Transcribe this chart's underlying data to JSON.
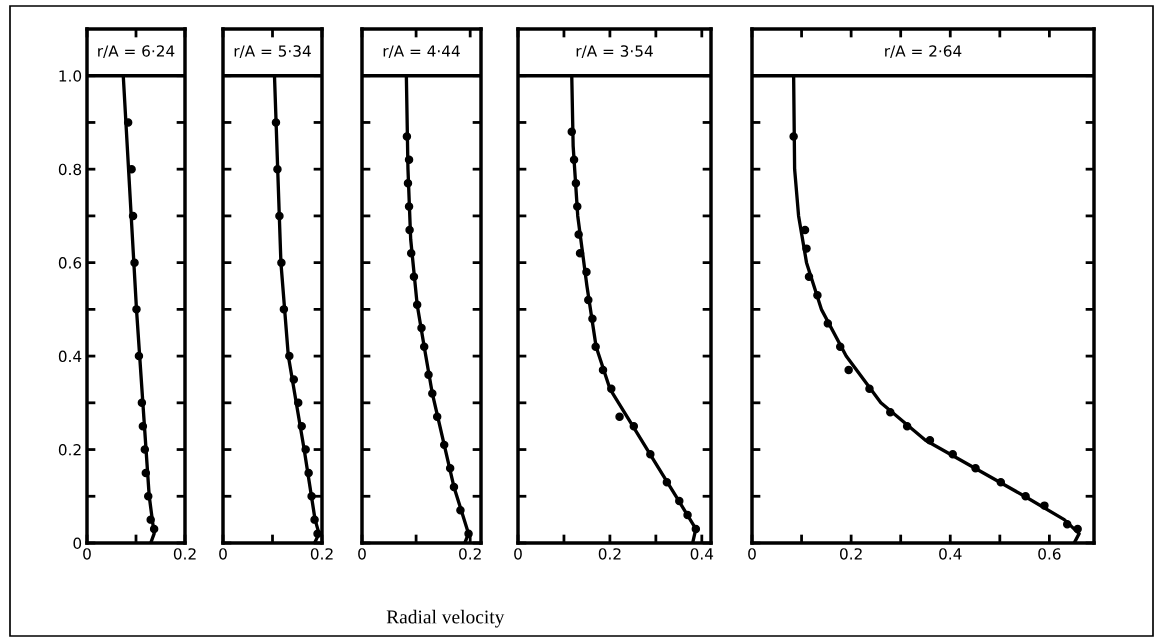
{
  "chart_data": [
    {
      "type": "scatter",
      "title": "r/A = 6·24",
      "xlim": [
        0,
        0.2
      ],
      "ylim": [
        0,
        1.1
      ],
      "xticks": [
        0,
        {
          "value": 0.1,
          "label": null
        },
        0.2
      ],
      "yticks": [
        0,
        {
          "value": 0.1,
          "label": null
        },
        0.2,
        {
          "value": 0.3,
          "label": null
        },
        0.4,
        {
          "value": 0.5,
          "label": null
        },
        0.6,
        {
          "value": 0.7,
          "label": null
        },
        0.8,
        {
          "value": 0.9,
          "label": null
        },
        {
          "value": 1.0,
          "label": "1.0"
        }
      ],
      "marker": "circle",
      "ref_lines": [
        {
          "axis": "y",
          "value": 1.0,
          "color": "#000000"
        }
      ],
      "series": [
        {
          "type": "line",
          "color": "#000000",
          "marker": "none",
          "x": [
            0.074,
            0.101,
            0.127,
            0.137,
            0.13
          ],
          "values": [
            1.0,
            0.5,
            0.1,
            0.02,
            0
          ]
        },
        {
          "color": "#000000",
          "x": [
            0.084,
            0.091,
            0.094,
            0.097,
            0.101,
            0.106,
            0.112,
            0.114,
            0.118,
            0.12,
            0.125,
            0.13,
            0.137
          ],
          "values": [
            0.9,
            0.8,
            0.7,
            0.6,
            0.5,
            0.4,
            0.3,
            0.25,
            0.2,
            0.15,
            0.1,
            0.05,
            0.03
          ]
        }
      ]
    },
    {
      "type": "scatter",
      "title": "r/A = 5·34",
      "xlim": [
        0,
        0.2
      ],
      "ylim": [
        0,
        1.1
      ],
      "tick_labels": "x",
      "xticks": [
        0,
        {
          "value": 0.1,
          "label": null
        },
        0.2
      ],
      "yticks": [
        0,
        0.1,
        0.2,
        0.3,
        0.4,
        0.5,
        0.6,
        0.7,
        0.8,
        0.9,
        1.0
      ],
      "marker": "circle",
      "ref_lines": [
        {
          "axis": "y",
          "value": 1.0,
          "color": "#000000"
        }
      ],
      "series": [
        {
          "type": "line",
          "color": "#000000",
          "marker": "none",
          "x": [
            0.104,
            0.117,
            0.132,
            0.164,
            0.186,
            0.194,
            0.185
          ],
          "values": [
            1.0,
            0.6,
            0.4,
            0.2,
            0.05,
            0.02,
            0
          ]
        },
        {
          "color": "#000000",
          "x": [
            0.107,
            0.11,
            0.114,
            0.118,
            0.123,
            0.134,
            0.143,
            0.152,
            0.159,
            0.167,
            0.173,
            0.179,
            0.185,
            0.191
          ],
          "values": [
            0.9,
            0.8,
            0.7,
            0.6,
            0.5,
            0.4,
            0.35,
            0.3,
            0.25,
            0.2,
            0.15,
            0.1,
            0.05,
            0.02
          ]
        }
      ]
    },
    {
      "type": "scatter",
      "title": "r/A = 4·44",
      "xlabel": "Radial velocity",
      "xlim": [
        0,
        0.22
      ],
      "ylim": [
        0,
        1.1
      ],
      "tick_labels": "x",
      "xticks": [
        0,
        {
          "value": 0.1,
          "label": null
        },
        0.2
      ],
      "yticks": [
        0,
        0.1,
        0.2,
        0.3,
        0.4,
        0.5,
        0.6,
        0.7,
        0.8,
        0.9,
        1.0
      ],
      "marker": "circle",
      "ref_lines": [
        {
          "axis": "y",
          "value": 1.0,
          "color": "#000000"
        }
      ],
      "series": [
        {
          "type": "line",
          "color": "#000000",
          "marker": "none",
          "x": [
            0.082,
            0.085,
            0.09,
            0.102,
            0.115,
            0.13,
            0.152,
            0.17,
            0.197,
            0.19
          ],
          "values": [
            1.0,
            0.8,
            0.65,
            0.51,
            0.42,
            0.32,
            0.21,
            0.12,
            0.02,
            0
          ]
        },
        {
          "color": "#000000",
          "x": [
            0.083,
            0.087,
            0.085,
            0.087,
            0.088,
            0.091,
            0.096,
            0.102,
            0.11,
            0.115,
            0.123,
            0.13,
            0.139,
            0.152,
            0.163,
            0.17,
            0.182,
            0.197
          ],
          "values": [
            0.87,
            0.82,
            0.77,
            0.72,
            0.67,
            0.62,
            0.57,
            0.51,
            0.46,
            0.42,
            0.36,
            0.32,
            0.27,
            0.21,
            0.16,
            0.12,
            0.07,
            0.02
          ]
        }
      ]
    },
    {
      "type": "scatter",
      "title": "r/A = 3·54",
      "xlim": [
        0,
        0.42
      ],
      "ylim": [
        0,
        1.1
      ],
      "tick_labels": "x",
      "xticks": [
        0,
        {
          "value": 0.1,
          "label": null
        },
        0.2,
        {
          "value": 0.3,
          "label": null
        },
        0.4
      ],
      "yticks": [
        0,
        0.1,
        0.2,
        0.3,
        0.4,
        0.5,
        0.6,
        0.7,
        0.8,
        0.9,
        1.0
      ],
      "marker": "circle",
      "ref_lines": [
        {
          "axis": "y",
          "value": 1.0,
          "color": "#000000"
        }
      ],
      "series": [
        {
          "type": "line",
          "color": "#000000",
          "marker": "none",
          "x": [
            0.117,
            0.12,
            0.13,
            0.15,
            0.17,
            0.2,
            0.25,
            0.3,
            0.35,
            0.387,
            0.38
          ],
          "values": [
            1.0,
            0.85,
            0.7,
            0.55,
            0.42,
            0.33,
            0.25,
            0.17,
            0.09,
            0.03,
            0
          ]
        },
        {
          "color": "#000000",
          "x": [
            0.117,
            0.122,
            0.126,
            0.129,
            0.132,
            0.135,
            0.149,
            0.153,
            0.162,
            0.169,
            0.185,
            0.203,
            0.221,
            0.252,
            0.288,
            0.324,
            0.351,
            0.369,
            0.387
          ],
          "values": [
            0.88,
            0.82,
            0.77,
            0.72,
            0.66,
            0.62,
            0.58,
            0.52,
            0.48,
            0.42,
            0.37,
            0.33,
            0.27,
            0.25,
            0.19,
            0.13,
            0.09,
            0.06,
            0.03
          ]
        }
      ]
    },
    {
      "type": "scatter",
      "title": "r/A = 2·64",
      "xlim": [
        0,
        0.69
      ],
      "ylim": [
        0,
        1.1
      ],
      "tick_labels": "x",
      "xticks": [
        0,
        {
          "value": 0.1,
          "label": null
        },
        0.2,
        {
          "value": 0.3,
          "label": null
        },
        0.4,
        {
          "value": 0.5,
          "label": null
        },
        0.6
      ],
      "yticks": [
        0,
        0.1,
        0.2,
        0.3,
        0.4,
        0.5,
        0.6,
        0.7,
        0.8,
        0.9,
        1.0
      ],
      "marker": "circle",
      "ref_lines": [
        {
          "axis": "y",
          "value": 1.0,
          "color": "#000000"
        }
      ],
      "series": [
        {
          "type": "line",
          "color": "#000000",
          "marker": "none",
          "x": [
            0.084,
            0.086,
            0.094,
            0.11,
            0.14,
            0.19,
            0.26,
            0.35,
            0.45,
            0.55,
            0.63,
            0.66,
            0.65
          ],
          "values": [
            1.0,
            0.8,
            0.7,
            0.6,
            0.5,
            0.4,
            0.3,
            0.22,
            0.16,
            0.1,
            0.05,
            0.02,
            0
          ]
        },
        {
          "color": "#000000",
          "x": [
            0.084,
            0.107,
            0.11,
            0.115,
            0.132,
            0.153,
            0.178,
            0.195,
            0.237,
            0.279,
            0.313,
            0.359,
            0.405,
            0.451,
            0.502,
            0.552,
            0.59,
            0.636,
            0.657
          ],
          "values": [
            0.87,
            0.67,
            0.63,
            0.57,
            0.53,
            0.47,
            0.42,
            0.37,
            0.33,
            0.28,
            0.25,
            0.22,
            0.19,
            0.16,
            0.13,
            0.1,
            0.08,
            0.04,
            0.03
          ]
        }
      ]
    }
  ]
}
